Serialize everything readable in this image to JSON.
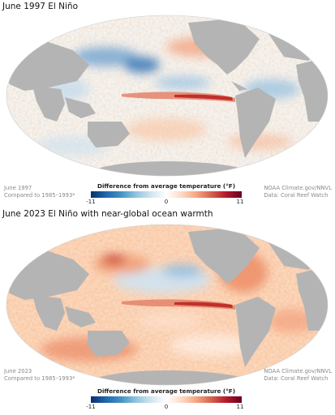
{
  "panels": [
    {
      "title": "June 1997 El Niño",
      "date_label": "June 1997",
      "baseline_label": "Compared to 1985–1993*",
      "credit": "NOAA Climate.gov/NNVL",
      "source": "Data: Coral Reef Watch"
    },
    {
      "title": "June 2023 El Niño with near-global ocean warmth",
      "date_label": "June 2023",
      "baseline_label": "Compared to 1985–1993*",
      "credit": "NOAA Climate.gov/NNVL",
      "source": "Data: Coral Reef Watch"
    }
  ],
  "legend": {
    "title": "Difference from average temperature (°F)",
    "min_label": "-11",
    "mid_label": "0",
    "max_label": "11",
    "colors": {
      "cold": "#2166ac",
      "neutral": "#ffffff",
      "warm": "#d6604d",
      "hot": "#67001f",
      "land": "#b4b4b4"
    }
  }
}
